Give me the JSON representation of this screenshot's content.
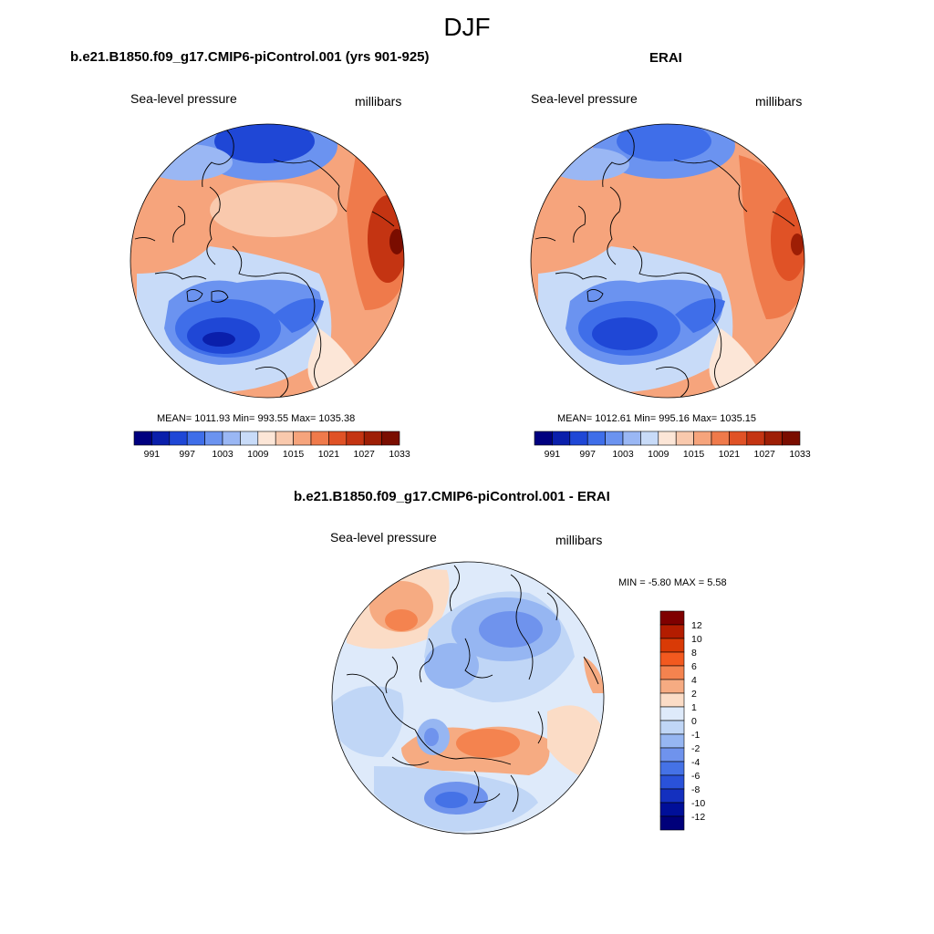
{
  "season": "DJF",
  "panels": [
    {
      "title": "b.e21.B1850.f09_g17.CMIP6-piControl.001 (yrs 901-925)",
      "left_label": "Sea-level pressure",
      "right_label": "millibars",
      "stats": "MEAN= 1011.93  Min= 993.55  Max= 1035.38"
    },
    {
      "title": "ERAI",
      "left_label": "Sea-level pressure",
      "right_label": "millibars",
      "stats": "MEAN= 1012.61  Min= 995.16  Max= 1035.15"
    },
    {
      "title": "b.e21.B1850.f09_g17.CMIP6-piControl.001 - ERAI",
      "left_label": "Sea-level pressure",
      "right_label": "millibars",
      "stats": "MIN =  -5.80 MAX =   5.58"
    }
  ],
  "abs_colorbar": {
    "colors": [
      "#00007f",
      "#0a1fab",
      "#1f47d6",
      "#3f6ee9",
      "#6b93f0",
      "#9ab7f4",
      "#c8dbf8",
      "#fce6d7",
      "#f9c9ad",
      "#f6a47c",
      "#ef7a4b",
      "#e05226",
      "#c43412",
      "#9e1e05",
      "#7a0d00"
    ],
    "labels": [
      "991",
      "997",
      "1003",
      "1009",
      "1015",
      "1021",
      "1027",
      "1033"
    ]
  },
  "diff_colorbar": {
    "colors_top_to_bottom": [
      "#7f0000",
      "#b31c00",
      "#d93a06",
      "#f2591f",
      "#f4834f",
      "#f6ab82",
      "#fbdcc6",
      "#deeafa",
      "#c0d6f6",
      "#96b6f2",
      "#6f93ed",
      "#4572e6",
      "#2a52d9",
      "#1430bf",
      "#000f99",
      "#00007a"
    ],
    "labels_top_to_bottom": [
      "12",
      "10",
      "8",
      "6",
      "4",
      "2",
      "1",
      "0",
      "-1",
      "-2",
      "-4",
      "-6",
      "-8",
      "-10",
      "-12"
    ]
  }
}
